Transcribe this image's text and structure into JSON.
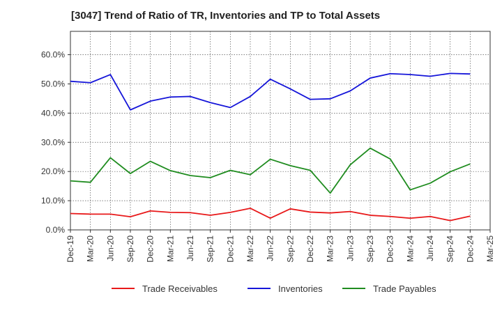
{
  "chart_data": {
    "type": "line",
    "title": "[3047]  Trend of Ratio of TR, Inventories and TP to Total Assets",
    "xlabel": "",
    "ylabel": "",
    "x": [
      "Dec-19",
      "Mar-20",
      "Jun-20",
      "Sep-20",
      "Dec-20",
      "Mar-21",
      "Jun-21",
      "Sep-21",
      "Dec-21",
      "Mar-22",
      "Jun-22",
      "Sep-22",
      "Dec-22",
      "Mar-23",
      "Jun-23",
      "Sep-23",
      "Dec-23",
      "Mar-24",
      "Jun-24",
      "Sep-24",
      "Dec-24"
    ],
    "x_ticks": [
      "Dec-19",
      "Mar-20",
      "Jun-20",
      "Sep-20",
      "Dec-20",
      "Mar-21",
      "Jun-21",
      "Sep-21",
      "Dec-21",
      "Mar-22",
      "Jun-22",
      "Sep-22",
      "Dec-22",
      "Mar-23",
      "Jun-23",
      "Sep-23",
      "Dec-23",
      "Mar-24",
      "Jun-24",
      "Sep-24",
      "Dec-24",
      "Mar-25"
    ],
    "ylim": [
      0,
      68
    ],
    "y_ticks": [
      0,
      10,
      20,
      30,
      40,
      50,
      60
    ],
    "y_tick_labels": [
      "0.0%",
      "10.0%",
      "20.0%",
      "30.0%",
      "40.0%",
      "50.0%",
      "60.0%"
    ],
    "grid": true,
    "legend_position": "bottom",
    "series": [
      {
        "name": "Trade Receivables",
        "color": "#e8191a",
        "values": [
          5.6,
          5.4,
          5.4,
          4.5,
          6.5,
          6.0,
          5.9,
          5.0,
          6.0,
          7.4,
          4.0,
          7.2,
          6.1,
          5.8,
          6.3,
          5.0,
          4.6,
          4.0,
          4.6,
          3.2,
          4.7
        ]
      },
      {
        "name": "Inventories",
        "color": "#1515d9",
        "values": [
          50.9,
          50.4,
          53.2,
          41.1,
          44.1,
          45.5,
          45.7,
          43.6,
          41.9,
          45.7,
          51.6,
          48.3,
          44.7,
          44.9,
          47.6,
          52.0,
          53.5,
          53.2,
          52.6,
          53.6,
          53.4
        ]
      },
      {
        "name": "Trade Payables",
        "color": "#1f8c1f",
        "values": [
          16.8,
          16.3,
          24.7,
          19.3,
          23.5,
          20.3,
          18.6,
          17.9,
          20.4,
          18.9,
          24.2,
          22.0,
          20.4,
          12.6,
          22.3,
          28.0,
          24.3,
          13.7,
          16.0,
          19.9,
          22.6
        ]
      }
    ]
  }
}
